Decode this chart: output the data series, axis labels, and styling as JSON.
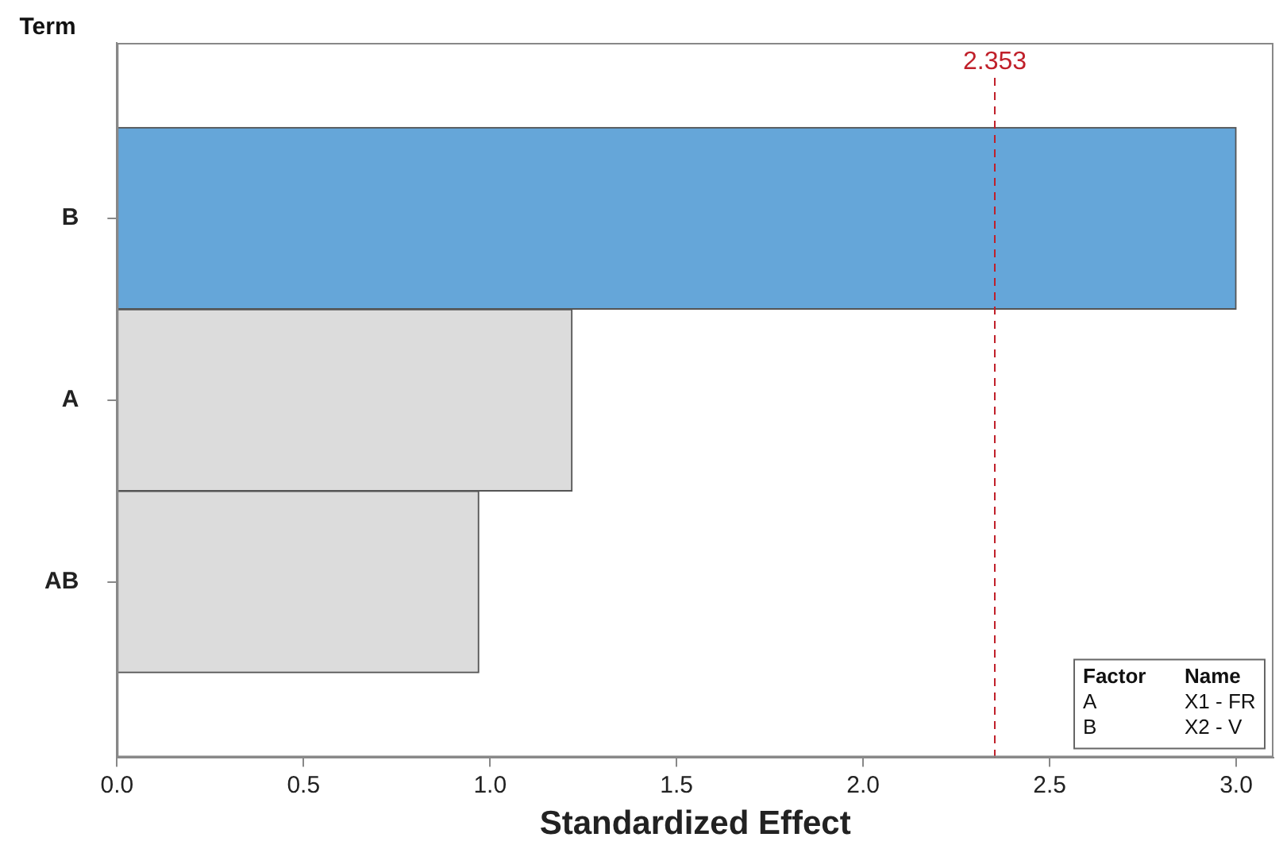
{
  "chart_data": {
    "type": "bar",
    "orientation": "horizontal",
    "xlabel": "Standardized Effect",
    "ylabel": "Term",
    "categories": [
      "B",
      "A",
      "AB"
    ],
    "values": [
      3.0,
      1.22,
      0.97
    ],
    "colors": [
      "#65a6d9",
      "#dcdcdc",
      "#dcdcdc"
    ],
    "xlim": [
      0,
      3.1
    ],
    "xticks": [
      {
        "value": 0,
        "label": "0.0"
      },
      {
        "value": 0.5,
        "label": "0.5"
      },
      {
        "value": 1,
        "label": "1.0"
      },
      {
        "value": 1.5,
        "label": "1.5"
      },
      {
        "value": 2,
        "label": "2.0"
      },
      {
        "value": 2.5,
        "label": "2.5"
      },
      {
        "value": 3,
        "label": "3.0"
      }
    ],
    "ref_lines": [
      {
        "axis": "x",
        "value": 2.353,
        "label": "2.353",
        "color": "#c0202a",
        "line_style": "dashed"
      }
    ],
    "annotations": [
      "Factor",
      "Name",
      "A",
      "X1 - FR",
      "B",
      "X2 - V"
    ],
    "grid": false,
    "legend": false
  }
}
